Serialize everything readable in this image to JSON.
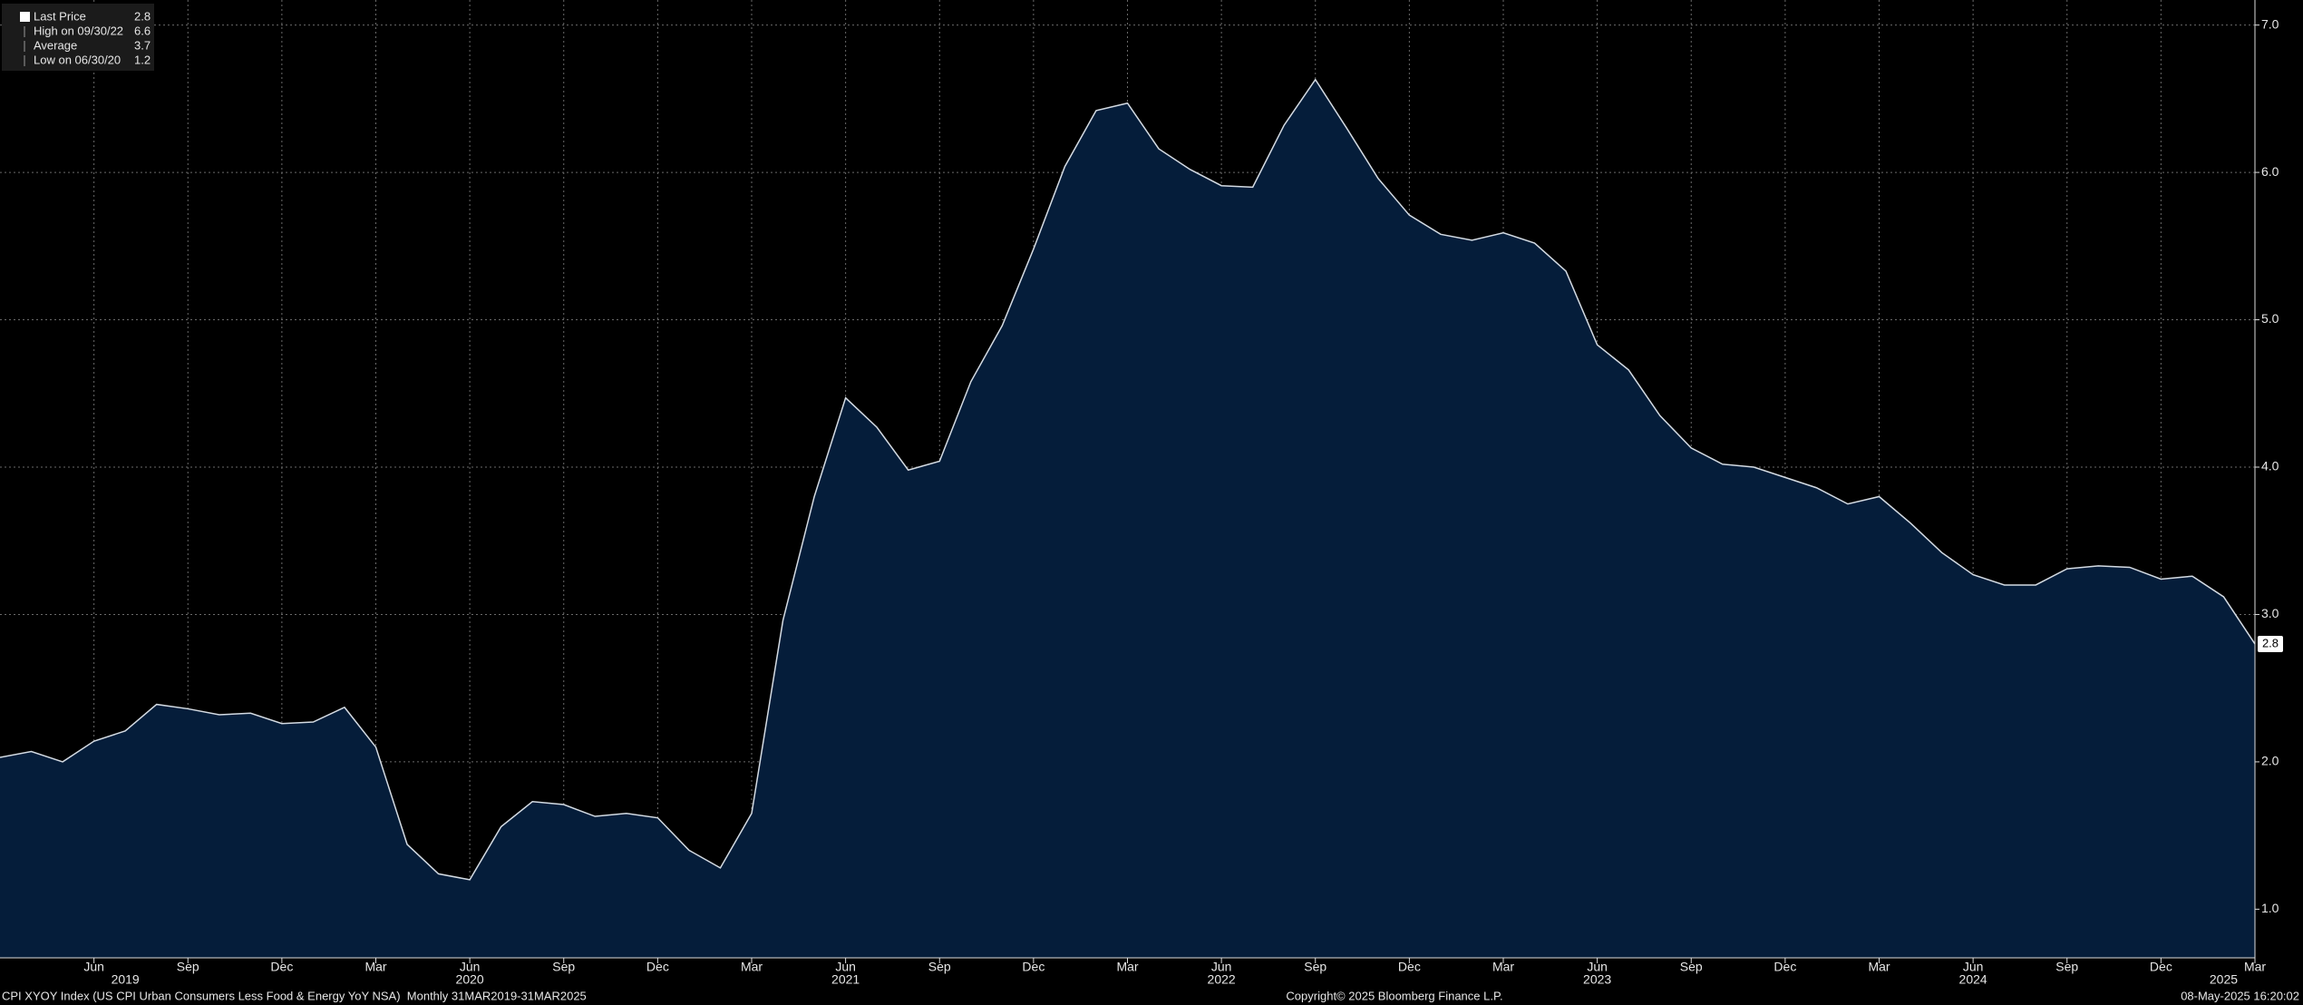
{
  "chart_data": {
    "type": "area",
    "x": [
      "2019-03",
      "2019-04",
      "2019-05",
      "2019-06",
      "2019-07",
      "2019-08",
      "2019-09",
      "2019-10",
      "2019-11",
      "2019-12",
      "2020-01",
      "2020-02",
      "2020-03",
      "2020-04",
      "2020-05",
      "2020-06",
      "2020-07",
      "2020-08",
      "2020-09",
      "2020-10",
      "2020-11",
      "2020-12",
      "2021-01",
      "2021-02",
      "2021-03",
      "2021-04",
      "2021-05",
      "2021-06",
      "2021-07",
      "2021-08",
      "2021-09",
      "2021-10",
      "2021-11",
      "2021-12",
      "2022-01",
      "2022-02",
      "2022-03",
      "2022-04",
      "2022-05",
      "2022-06",
      "2022-07",
      "2022-08",
      "2022-09",
      "2022-10",
      "2022-11",
      "2022-12",
      "2023-01",
      "2023-02",
      "2023-03",
      "2023-04",
      "2023-05",
      "2023-06",
      "2023-07",
      "2023-08",
      "2023-09",
      "2023-10",
      "2023-11",
      "2023-12",
      "2024-01",
      "2024-02",
      "2024-03",
      "2024-04",
      "2024-05",
      "2024-06",
      "2024-07",
      "2024-08",
      "2024-09",
      "2024-10",
      "2024-11",
      "2024-12",
      "2025-01",
      "2025-02",
      "2025-03"
    ],
    "series": [
      {
        "color": "#d4dbe3",
        "fill": "#051d3a",
        "values": [
          2.03,
          2.07,
          2.0,
          2.14,
          2.21,
          2.39,
          2.36,
          2.32,
          2.33,
          2.26,
          2.27,
          2.37,
          2.1,
          1.44,
          1.24,
          1.2,
          1.56,
          1.73,
          1.71,
          1.63,
          1.65,
          1.62,
          1.4,
          1.28,
          1.65,
          2.96,
          3.8,
          4.47,
          4.27,
          3.98,
          4.04,
          4.58,
          4.96,
          5.48,
          6.04,
          6.42,
          6.47,
          6.16,
          6.02,
          5.91,
          5.9,
          6.32,
          6.63,
          6.3,
          5.96,
          5.71,
          5.58,
          5.54,
          5.59,
          5.52,
          5.33,
          4.83,
          4.66,
          4.35,
          4.13,
          4.02,
          4.0,
          3.93,
          3.86,
          3.75,
          3.8,
          3.62,
          3.42,
          3.27,
          3.2,
          3.2,
          3.31,
          3.33,
          3.32,
          3.24,
          3.26,
          3.12,
          2.8
        ]
      }
    ],
    "stats": [
      {
        "label": "Last Price",
        "value": 2.8
      },
      {
        "label": "High on 09/30/22",
        "value": 6.6
      },
      {
        "label": "Average",
        "value": 3.7
      },
      {
        "label": "Low on 06/30/20",
        "value": 1.2
      }
    ],
    "ylim": [
      0.67,
      7.17
    ],
    "yticks": [
      {
        "value": 1,
        "label": "1.0"
      },
      {
        "value": 2,
        "label": "2.0"
      },
      {
        "value": 3,
        "label": "3.0"
      },
      {
        "value": 4,
        "label": "4.0"
      },
      {
        "value": 5,
        "label": "5.0"
      },
      {
        "value": 6,
        "label": "6.0"
      },
      {
        "value": 7,
        "label": "7.0"
      }
    ],
    "xticks": [
      {
        "value": "2019-06",
        "label": "Jun"
      },
      {
        "value": "2019-09",
        "label": "Sep"
      },
      {
        "value": "2019-12",
        "label": "Dec"
      },
      {
        "value": "2020-03",
        "label": "Mar"
      },
      {
        "value": "2020-06",
        "label": "Jun"
      },
      {
        "value": "2020-09",
        "label": "Sep"
      },
      {
        "value": "2020-12",
        "label": "Dec"
      },
      {
        "value": "2021-03",
        "label": "Mar"
      },
      {
        "value": "2021-06",
        "label": "Jun"
      },
      {
        "value": "2021-09",
        "label": "Sep"
      },
      {
        "value": "2021-12",
        "label": "Dec"
      },
      {
        "value": "2022-03",
        "label": "Mar"
      },
      {
        "value": "2022-06",
        "label": "Jun"
      },
      {
        "value": "2022-09",
        "label": "Sep"
      },
      {
        "value": "2022-12",
        "label": "Dec"
      },
      {
        "value": "2023-03",
        "label": "Mar"
      },
      {
        "value": "2023-06",
        "label": "Jun"
      },
      {
        "value": "2023-09",
        "label": "Sep"
      },
      {
        "value": "2023-12",
        "label": "Dec"
      },
      {
        "value": "2024-03",
        "label": "Mar"
      },
      {
        "value": "2024-06",
        "label": "Jun"
      },
      {
        "value": "2024-09",
        "label": "Sep"
      },
      {
        "value": "2024-12",
        "label": "Dec"
      },
      {
        "value": "2025-03",
        "label": "Mar"
      }
    ],
    "year_labels": [
      {
        "value": "2019-07",
        "label": "2019"
      },
      {
        "value": "2020-06",
        "label": "2020"
      },
      {
        "value": "2021-06",
        "label": "2021"
      },
      {
        "value": "2022-06",
        "label": "2022"
      },
      {
        "value": "2023-06",
        "label": "2023"
      },
      {
        "value": "2024-06",
        "label": "2024"
      },
      {
        "value": "2025-02",
        "label": "2025"
      }
    ],
    "grid": true,
    "footer_left": "CPI XYOY Index (US CPI Urban Consumers Less Food & Energy YoY NSA)  Monthly 31MAR2019-31MAR2025",
    "footer_center": "Copyright© 2025 Bloomberg Finance L.P.",
    "footer_right": "08-May-2025 16:20:02"
  }
}
